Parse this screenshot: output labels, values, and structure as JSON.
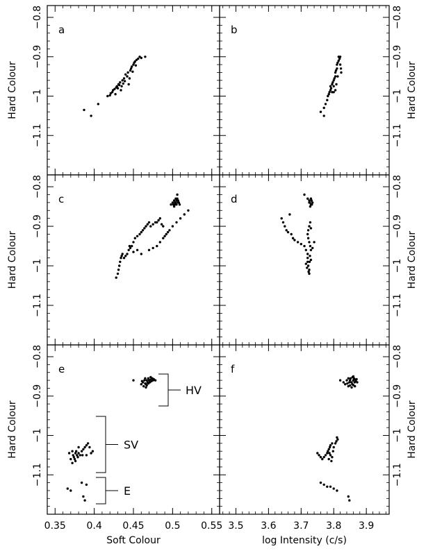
{
  "chart_data": [
    {
      "panel": "a",
      "type": "scatter",
      "title": "",
      "panel_label": "a",
      "xlabel": "",
      "ylabel": "Hard Colour",
      "xlim": [
        0.34,
        0.56
      ],
      "ylim": [
        -1.2,
        -0.77
      ],
      "points": [
        [
          0.387,
          -1.035
        ],
        [
          0.396,
          -1.05
        ],
        [
          0.405,
          -1.02
        ],
        [
          0.417,
          -1.0
        ],
        [
          0.42,
          -0.998
        ],
        [
          0.421,
          -0.993
        ],
        [
          0.423,
          -0.99
        ],
        [
          0.424,
          -0.985
        ],
        [
          0.426,
          -0.982
        ],
        [
          0.427,
          -0.995
        ],
        [
          0.428,
          -0.978
        ],
        [
          0.429,
          -0.975
        ],
        [
          0.43,
          -0.98
        ],
        [
          0.431,
          -0.97
        ],
        [
          0.432,
          -0.972
        ],
        [
          0.433,
          -0.965
        ],
        [
          0.434,
          -0.985
        ],
        [
          0.435,
          -0.975
        ],
        [
          0.436,
          -0.96
        ],
        [
          0.437,
          -0.968
        ],
        [
          0.438,
          -0.955
        ],
        [
          0.44,
          -0.945
        ],
        [
          0.442,
          -0.95
        ],
        [
          0.443,
          -0.94
        ],
        [
          0.444,
          -0.97
        ],
        [
          0.446,
          -0.935
        ],
        [
          0.447,
          -0.93
        ],
        [
          0.448,
          -0.925
        ],
        [
          0.449,
          -0.938
        ],
        [
          0.45,
          -0.92
        ],
        [
          0.451,
          -0.915
        ],
        [
          0.452,
          -0.912
        ],
        [
          0.453,
          -0.922
        ],
        [
          0.454,
          -0.908
        ],
        [
          0.456,
          -0.905
        ],
        [
          0.458,
          -0.9
        ],
        [
          0.46,
          -0.903
        ],
        [
          0.465,
          -0.9
        ],
        [
          0.445,
          -0.955
        ],
        [
          0.439,
          -0.962
        ]
      ]
    },
    {
      "panel": "b",
      "type": "scatter",
      "title": "",
      "panel_label": "b",
      "xlabel": "",
      "ylabel": "Hard Colour",
      "xlim": [
        3.45,
        3.97
      ],
      "ylim": [
        -1.2,
        -0.77
      ],
      "points": [
        [
          3.76,
          -1.04
        ],
        [
          3.77,
          -1.05
        ],
        [
          3.77,
          -1.03
        ],
        [
          3.775,
          -1.02
        ],
        [
          3.78,
          -1.01
        ],
        [
          3.782,
          -1.0
        ],
        [
          3.785,
          -0.995
        ],
        [
          3.787,
          -0.99
        ],
        [
          3.79,
          -0.985
        ],
        [
          3.79,
          -0.975
        ],
        [
          3.792,
          -0.98
        ],
        [
          3.795,
          -0.97
        ],
        [
          3.797,
          -0.965
        ],
        [
          3.8,
          -0.975
        ],
        [
          3.8,
          -0.96
        ],
        [
          3.802,
          -0.955
        ],
        [
          3.805,
          -0.95
        ],
        [
          3.805,
          -0.94
        ],
        [
          3.807,
          -0.935
        ],
        [
          3.81,
          -0.93
        ],
        [
          3.81,
          -0.92
        ],
        [
          3.812,
          -0.915
        ],
        [
          3.815,
          -0.91
        ],
        [
          3.815,
          -0.9
        ],
        [
          3.818,
          -0.905
        ],
        [
          3.82,
          -0.9
        ],
        [
          3.82,
          -0.92
        ],
        [
          3.822,
          -0.93
        ],
        [
          3.823,
          -0.94
        ],
        [
          3.8,
          -0.99
        ],
        [
          3.805,
          -0.985
        ],
        [
          3.808,
          -0.97
        ],
        [
          3.795,
          -0.99
        ],
        [
          3.812,
          -0.95
        ]
      ]
    },
    {
      "panel": "c",
      "type": "scatter",
      "title": "",
      "panel_label": "c",
      "xlabel": "",
      "ylabel": "Hard Colour",
      "xlim": [
        0.34,
        0.56
      ],
      "ylim": [
        -1.2,
        -0.77
      ],
      "points": [
        [
          0.428,
          -1.03
        ],
        [
          0.43,
          -1.02
        ],
        [
          0.431,
          -1.01
        ],
        [
          0.432,
          -1.0
        ],
        [
          0.433,
          -0.99
        ],
        [
          0.434,
          -0.98
        ],
        [
          0.435,
          -0.975
        ],
        [
          0.436,
          -0.97
        ],
        [
          0.438,
          -0.98
        ],
        [
          0.44,
          -0.975
        ],
        [
          0.442,
          -0.97
        ],
        [
          0.444,
          -0.96
        ],
        [
          0.446,
          -0.955
        ],
        [
          0.448,
          -0.95
        ],
        [
          0.45,
          -0.94
        ],
        [
          0.452,
          -0.93
        ],
        [
          0.455,
          -0.925
        ],
        [
          0.458,
          -0.92
        ],
        [
          0.46,
          -0.915
        ],
        [
          0.462,
          -0.91
        ],
        [
          0.464,
          -0.905
        ],
        [
          0.466,
          -0.9
        ],
        [
          0.468,
          -0.895
        ],
        [
          0.47,
          -0.89
        ],
        [
          0.472,
          -0.9
        ],
        [
          0.475,
          -0.895
        ],
        [
          0.478,
          -0.89
        ],
        [
          0.48,
          -0.89
        ],
        [
          0.482,
          -0.885
        ],
        [
          0.484,
          -0.88
        ],
        [
          0.486,
          -0.895
        ],
        [
          0.488,
          -0.9
        ],
        [
          0.47,
          -0.96
        ],
        [
          0.475,
          -0.955
        ],
        [
          0.48,
          -0.95
        ],
        [
          0.484,
          -0.94
        ],
        [
          0.488,
          -0.93
        ],
        [
          0.49,
          -0.925
        ],
        [
          0.492,
          -0.92
        ],
        [
          0.494,
          -0.915
        ],
        [
          0.496,
          -0.91
        ],
        [
          0.5,
          -0.9
        ],
        [
          0.505,
          -0.89
        ],
        [
          0.51,
          -0.88
        ],
        [
          0.515,
          -0.87
        ],
        [
          0.52,
          -0.86
        ],
        [
          0.46,
          -0.97
        ],
        [
          0.455,
          -0.96
        ],
        [
          0.45,
          -0.965
        ],
        [
          0.445,
          -0.95
        ],
        [
          0.498,
          -0.845
        ],
        [
          0.5,
          -0.84
        ],
        [
          0.502,
          -0.835
        ],
        [
          0.503,
          -0.845
        ],
        [
          0.504,
          -0.84
        ],
        [
          0.505,
          -0.835
        ],
        [
          0.506,
          -0.83
        ],
        [
          0.507,
          -0.84
        ],
        [
          0.502,
          -0.85
        ],
        [
          0.505,
          -0.845
        ],
        [
          0.508,
          -0.84
        ],
        [
          0.504,
          -0.83
        ],
        [
          0.506,
          -0.82
        ],
        [
          0.503,
          -0.84
        ],
        [
          0.501,
          -0.845
        ],
        [
          0.507,
          -0.835
        ],
        [
          0.509,
          -0.845
        ]
      ]
    },
    {
      "panel": "d",
      "type": "scatter",
      "title": "",
      "panel_label": "d",
      "xlabel": "",
      "ylabel": "Hard Colour",
      "xlim": [
        3.45,
        3.97
      ],
      "ylim": [
        -1.2,
        -0.77
      ],
      "points": [
        [
          3.64,
          -0.88
        ],
        [
          3.645,
          -0.89
        ],
        [
          3.65,
          -0.9
        ],
        [
          3.655,
          -0.91
        ],
        [
          3.66,
          -0.915
        ],
        [
          3.665,
          -0.87
        ],
        [
          3.67,
          -0.92
        ],
        [
          3.675,
          -0.93
        ],
        [
          3.68,
          -0.935
        ],
        [
          3.69,
          -0.94
        ],
        [
          3.7,
          -0.945
        ],
        [
          3.71,
          -0.95
        ],
        [
          3.715,
          -0.96
        ],
        [
          3.72,
          -0.97
        ],
        [
          3.72,
          -0.98
        ],
        [
          3.72,
          -0.99
        ],
        [
          3.722,
          -1.0
        ],
        [
          3.725,
          -1.01
        ],
        [
          3.725,
          -1.02
        ],
        [
          3.727,
          -0.975
        ],
        [
          3.73,
          -0.985
        ],
        [
          3.73,
          -0.96
        ],
        [
          3.728,
          -0.95
        ],
        [
          3.725,
          -0.94
        ],
        [
          3.722,
          -0.93
        ],
        [
          3.72,
          -0.92
        ],
        [
          3.722,
          -0.91
        ],
        [
          3.725,
          -0.9
        ],
        [
          3.728,
          -0.89
        ],
        [
          3.73,
          -0.905
        ],
        [
          3.715,
          -0.995
        ],
        [
          3.718,
          -1.005
        ],
        [
          3.723,
          -1.015
        ],
        [
          3.726,
          -0.99
        ],
        [
          3.71,
          -0.82
        ],
        [
          3.72,
          -0.83
        ],
        [
          3.725,
          -0.835
        ],
        [
          3.727,
          -0.84
        ],
        [
          3.73,
          -0.845
        ],
        [
          3.732,
          -0.835
        ],
        [
          3.735,
          -0.84
        ],
        [
          3.728,
          -0.85
        ],
        [
          3.73,
          -0.83
        ],
        [
          3.733,
          -0.845
        ],
        [
          3.725,
          -0.84
        ],
        [
          3.74,
          -0.94
        ],
        [
          3.735,
          -0.955
        ]
      ]
    },
    {
      "panel": "e",
      "type": "scatter",
      "title": "",
      "panel_label": "e",
      "xlabel": "Soft Colour",
      "ylabel": "Hard Colour",
      "xlim": [
        0.34,
        0.56
      ],
      "ylim": [
        -1.2,
        -0.77
      ],
      "x_ticks": [
        "0.35",
        "0.4",
        "0.45",
        "0.5",
        "0.55"
      ],
      "points": [
        [
          0.45,
          -0.86
        ],
        [
          0.46,
          -0.87
        ],
        [
          0.462,
          -0.865
        ],
        [
          0.464,
          -0.86
        ],
        [
          0.465,
          -0.855
        ],
        [
          0.466,
          -0.87
        ],
        [
          0.467,
          -0.86
        ],
        [
          0.468,
          -0.865
        ],
        [
          0.469,
          -0.855
        ],
        [
          0.47,
          -0.86
        ],
        [
          0.471,
          -0.865
        ],
        [
          0.472,
          -0.858
        ],
        [
          0.473,
          -0.862
        ],
        [
          0.474,
          -0.855
        ],
        [
          0.475,
          -0.86
        ],
        [
          0.463,
          -0.875
        ],
        [
          0.465,
          -0.868
        ],
        [
          0.467,
          -0.873
        ],
        [
          0.469,
          -0.868
        ],
        [
          0.476,
          -0.857
        ],
        [
          0.478,
          -0.86
        ],
        [
          0.461,
          -0.862
        ],
        [
          0.466,
          -0.878
        ],
        [
          0.472,
          -0.852
        ],
        [
          0.368,
          -1.045
        ],
        [
          0.37,
          -1.06
        ],
        [
          0.372,
          -1.07
        ],
        [
          0.373,
          -1.05
        ],
        [
          0.374,
          -1.055
        ],
        [
          0.375,
          -1.06
        ],
        [
          0.376,
          -1.065
        ],
        [
          0.377,
          -1.04
        ],
        [
          0.378,
          -1.05
        ],
        [
          0.379,
          -1.055
        ],
        [
          0.38,
          -1.045
        ],
        [
          0.382,
          -1.05
        ],
        [
          0.384,
          -1.04
        ],
        [
          0.386,
          -1.035
        ],
        [
          0.388,
          -1.03
        ],
        [
          0.39,
          -1.025
        ],
        [
          0.392,
          -1.02
        ],
        [
          0.394,
          -1.03
        ],
        [
          0.396,
          -1.045
        ],
        [
          0.38,
          -1.03
        ],
        [
          0.385,
          -1.05
        ],
        [
          0.39,
          -1.05
        ],
        [
          0.372,
          -1.04
        ],
        [
          0.376,
          -1.045
        ],
        [
          0.398,
          -1.04
        ],
        [
          0.366,
          -1.135
        ],
        [
          0.37,
          -1.14
        ],
        [
          0.384,
          -1.12
        ],
        [
          0.386,
          -1.155
        ],
        [
          0.388,
          -1.165
        ],
        [
          0.39,
          -1.125
        ]
      ],
      "annotations": [
        "HV",
        "SV",
        "E"
      ]
    },
    {
      "panel": "f",
      "type": "scatter",
      "title": "",
      "panel_label": "f",
      "xlabel": "log Intensity (c/s)",
      "ylabel": "Hard Colour",
      "xlim": [
        3.45,
        3.97
      ],
      "ylim": [
        -1.2,
        -0.77
      ],
      "x_ticks": [
        "3.5",
        "3.6",
        "3.7",
        "3.8",
        "3.9"
      ],
      "points": [
        [
          3.82,
          -0.86
        ],
        [
          3.83,
          -0.865
        ],
        [
          3.835,
          -0.87
        ],
        [
          3.84,
          -0.86
        ],
        [
          3.845,
          -0.855
        ],
        [
          3.848,
          -0.865
        ],
        [
          3.85,
          -0.86
        ],
        [
          3.852,
          -0.855
        ],
        [
          3.855,
          -0.865
        ],
        [
          3.857,
          -0.87
        ],
        [
          3.86,
          -0.86
        ],
        [
          3.862,
          -0.855
        ],
        [
          3.864,
          -0.865
        ],
        [
          3.866,
          -0.858
        ],
        [
          3.868,
          -0.862
        ],
        [
          3.87,
          -0.857
        ],
        [
          3.872,
          -0.865
        ],
        [
          3.845,
          -0.875
        ],
        [
          3.85,
          -0.873
        ],
        [
          3.855,
          -0.878
        ],
        [
          3.86,
          -0.872
        ],
        [
          3.865,
          -0.875
        ],
        [
          3.842,
          -0.868
        ],
        [
          3.858,
          -0.852
        ],
        [
          3.86,
          -0.85
        ],
        [
          3.75,
          -1.045
        ],
        [
          3.755,
          -1.05
        ],
        [
          3.76,
          -1.055
        ],
        [
          3.765,
          -1.06
        ],
        [
          3.77,
          -1.055
        ],
        [
          3.775,
          -1.05
        ],
        [
          3.78,
          -1.045
        ],
        [
          3.782,
          -1.04
        ],
        [
          3.785,
          -1.035
        ],
        [
          3.788,
          -1.03
        ],
        [
          3.79,
          -1.025
        ],
        [
          3.795,
          -1.02
        ],
        [
          3.8,
          -1.03
        ],
        [
          3.805,
          -1.02
        ],
        [
          3.808,
          -1.015
        ],
        [
          3.81,
          -1.005
        ],
        [
          3.812,
          -1.01
        ],
        [
          3.787,
          -1.045
        ],
        [
          3.79,
          -1.05
        ],
        [
          3.795,
          -1.055
        ],
        [
          3.793,
          -1.065
        ],
        [
          3.798,
          -1.04
        ],
        [
          3.785,
          -1.06
        ],
        [
          3.76,
          -1.12
        ],
        [
          3.77,
          -1.125
        ],
        [
          3.78,
          -1.13
        ],
        [
          3.79,
          -1.13
        ],
        [
          3.8,
          -1.135
        ],
        [
          3.81,
          -1.14
        ],
        [
          3.845,
          -1.155
        ],
        [
          3.848,
          -1.165
        ]
      ]
    }
  ],
  "y_ticks": [
    "−0.8",
    "−0.9",
    "−1",
    "−1.1"
  ]
}
